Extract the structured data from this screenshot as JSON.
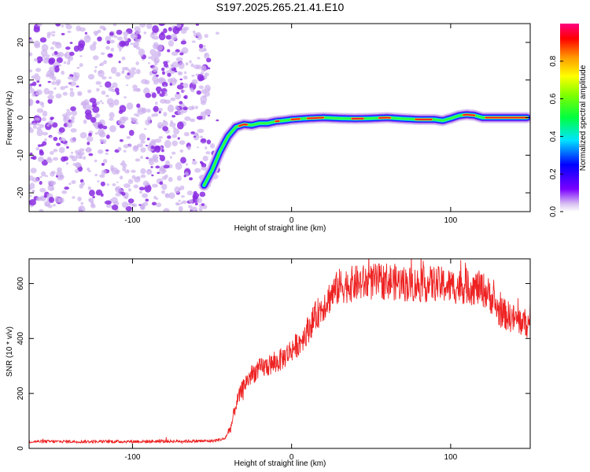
{
  "title": "S197.2025.265.21.41.E10",
  "chart_data": [
    {
      "type": "heatmap",
      "name": "spectrogram",
      "xlabel": "Height of straight line (km)",
      "ylabel": "Frequency (Hz)",
      "xlim": [
        -165,
        150
      ],
      "ylim": [
        -25,
        25
      ],
      "xticks": [
        -100,
        0,
        100
      ],
      "yticks": [
        -20,
        -10,
        0,
        10,
        20
      ],
      "noise_region_km": [
        -165,
        -52
      ],
      "signal_track": {
        "height_km": [
          -55,
          -50,
          -45,
          -40,
          -35,
          -30,
          -25,
          -20,
          -15,
          -10,
          -5,
          0,
          10,
          20,
          30,
          40,
          50,
          60,
          70,
          80,
          90,
          95,
          100,
          105,
          110,
          115,
          120,
          130,
          140,
          148
        ],
        "frequency_hz": [
          -18,
          -14,
          -9,
          -5,
          -2.5,
          -1.8,
          -2,
          -1.5,
          -1.5,
          -1,
          -0.8,
          -0.5,
          -0.2,
          0,
          -0.2,
          -0.3,
          -0.2,
          0,
          -0.3,
          -0.5,
          -0.5,
          -0.8,
          -0.2,
          0.5,
          0.8,
          0.6,
          0,
          0,
          0,
          0
        ]
      },
      "colorbar": {
        "label": "Normalized spectral amplitude",
        "range": [
          0,
          1
        ],
        "ticks": [
          "0.0",
          "0.2",
          "0.4",
          "0.6",
          "0.8"
        ],
        "tick_values": [
          0,
          0.2,
          0.4,
          0.6,
          0.8
        ]
      }
    },
    {
      "type": "line",
      "name": "snr",
      "xlabel": "Height of straight line (km)",
      "ylabel": "SNR (10 * v/v)",
      "xlim": [
        -165,
        150
      ],
      "ylim": [
        0,
        690
      ],
      "xticks": [
        -100,
        0,
        100
      ],
      "yticks": [
        0,
        200,
        400,
        600
      ],
      "color": "#ee2222",
      "envelope": {
        "height_km": [
          -165,
          -100,
          -50,
          -42,
          -38,
          -35,
          -30,
          -25,
          -20,
          -15,
          -10,
          -5,
          0,
          5,
          10,
          15,
          20,
          25,
          30,
          40,
          50,
          60,
          70,
          80,
          90,
          100,
          110,
          120,
          125,
          130,
          140,
          150
        ],
        "snr": [
          25,
          25,
          27,
          35,
          80,
          160,
          230,
          270,
          290,
          300,
          310,
          330,
          360,
          385,
          430,
          480,
          520,
          560,
          590,
          600,
          605,
          610,
          600,
          595,
          600,
          590,
          590,
          580,
          555,
          500,
          470,
          450
        ]
      }
    }
  ]
}
